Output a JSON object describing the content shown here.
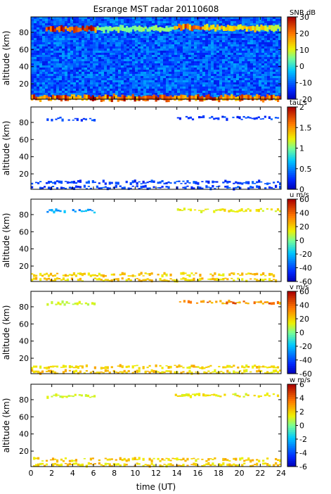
{
  "title": "Esrange MST radar 20110608",
  "xlabel": "time (UT)",
  "chart_data": [
    {
      "type": "heatmap",
      "ylabel": "altitude (km)",
      "colorbar_label": "SNR dB",
      "cb_ticks": [
        -20,
        -10,
        0,
        10,
        20,
        30
      ],
      "clim": [
        -20,
        30
      ],
      "background": "noise",
      "xlim": [
        0,
        24
      ],
      "ylim": [
        2,
        98
      ],
      "x_ticks": [
        0,
        2,
        4,
        6,
        8,
        10,
        12,
        14,
        16,
        18,
        20,
        22,
        24
      ],
      "y_ticks": [
        20,
        40,
        60,
        80
      ],
      "features": [
        {
          "t0": 1.4,
          "t1": 6.3,
          "alt": 84,
          "val": 24
        },
        {
          "t0": 13.7,
          "t1": 16.6,
          "alt": 86,
          "val": 20
        },
        {
          "t0": 16.6,
          "t1": 24,
          "alt": 85,
          "val": 12
        },
        {
          "t0": 6.3,
          "t1": 13.7,
          "alt": 84,
          "val": 6
        },
        {
          "t0": 0,
          "t1": 24,
          "alt": 3.5,
          "val": 22
        }
      ]
    },
    {
      "type": "heatmap",
      "ylabel": "altitude (km)",
      "colorbar_label": "tau s",
      "cb_ticks": [
        0,
        0.5,
        1,
        1.5,
        2
      ],
      "clim": [
        0,
        2
      ],
      "background": "white",
      "xlim": [
        0,
        24
      ],
      "ylim": [
        2,
        98
      ],
      "x_ticks": [
        0,
        2,
        4,
        6,
        8,
        10,
        12,
        14,
        16,
        18,
        20,
        22,
        24
      ],
      "y_ticks": [
        20,
        40,
        60,
        80
      ],
      "features": [
        {
          "t0": 1.5,
          "t1": 6.2,
          "alt": 84,
          "val": 0.3
        },
        {
          "t0": 13.8,
          "t1": 24,
          "alt": 85,
          "val": 0.3
        },
        {
          "t0": 0,
          "t1": 24,
          "alt": 10,
          "val": 0.3
        },
        {
          "t0": 0,
          "t1": 24,
          "alt": 4,
          "val": 0.3
        }
      ]
    },
    {
      "type": "heatmap",
      "ylabel": "altitude (km)",
      "colorbar_label": "u m/s",
      "cb_ticks": [
        -60,
        -40,
        -20,
        0,
        20,
        40,
        60
      ],
      "clim": [
        -60,
        60
      ],
      "background": "white",
      "xlim": [
        0,
        24
      ],
      "ylim": [
        2,
        98
      ],
      "x_ticks": [
        0,
        2,
        4,
        6,
        8,
        10,
        12,
        14,
        16,
        18,
        20,
        22,
        24
      ],
      "y_ticks": [
        20,
        40,
        60,
        80
      ],
      "features": [
        {
          "t0": 1.5,
          "t1": 6.2,
          "alt": 84,
          "val": -25
        },
        {
          "t0": 13.8,
          "t1": 24,
          "alt": 85,
          "val": 15
        },
        {
          "t0": 0,
          "t1": 24,
          "alt": 10,
          "val": 20
        },
        {
          "t0": 0,
          "t1": 24,
          "alt": 4,
          "val": 20
        }
      ]
    },
    {
      "type": "heatmap",
      "ylabel": "altitude (km)",
      "colorbar_label": "v m/s",
      "cb_ticks": [
        -60,
        -40,
        -20,
        0,
        20,
        40,
        60
      ],
      "clim": [
        -60,
        60
      ],
      "background": "white",
      "xlim": [
        0,
        24
      ],
      "ylim": [
        2,
        98
      ],
      "x_ticks": [
        0,
        2,
        4,
        6,
        8,
        10,
        12,
        14,
        16,
        18,
        20,
        22,
        24
      ],
      "y_ticks": [
        20,
        40,
        60,
        80
      ],
      "features": [
        {
          "t0": 1.5,
          "t1": 6.2,
          "alt": 84,
          "val": 10
        },
        {
          "t0": 13.8,
          "t1": 24,
          "alt": 85,
          "val": 35
        },
        {
          "t0": 0,
          "t1": 24,
          "alt": 10,
          "val": 20
        },
        {
          "t0": 0,
          "t1": 24,
          "alt": 4,
          "val": 20
        }
      ]
    },
    {
      "type": "heatmap",
      "ylabel": "altitude (km)",
      "colorbar_label": "w m/s",
      "cb_ticks": [
        -6,
        -4,
        -2,
        0,
        2,
        4,
        6
      ],
      "clim": [
        -6,
        6
      ],
      "background": "white",
      "xlim": [
        0,
        24
      ],
      "ylim": [
        2,
        98
      ],
      "x_ticks": [
        0,
        2,
        4,
        6,
        8,
        10,
        12,
        14,
        16,
        18,
        20,
        22,
        24
      ],
      "y_ticks": [
        20,
        40,
        60,
        80
      ],
      "features": [
        {
          "t0": 1.5,
          "t1": 6.2,
          "alt": 84,
          "val": 1
        },
        {
          "t0": 13.8,
          "t1": 24,
          "alt": 85,
          "val": 1.5
        },
        {
          "t0": 0,
          "t1": 24,
          "alt": 10,
          "val": 2
        },
        {
          "t0": 0,
          "t1": 24,
          "alt": 4,
          "val": 2
        }
      ]
    }
  ]
}
